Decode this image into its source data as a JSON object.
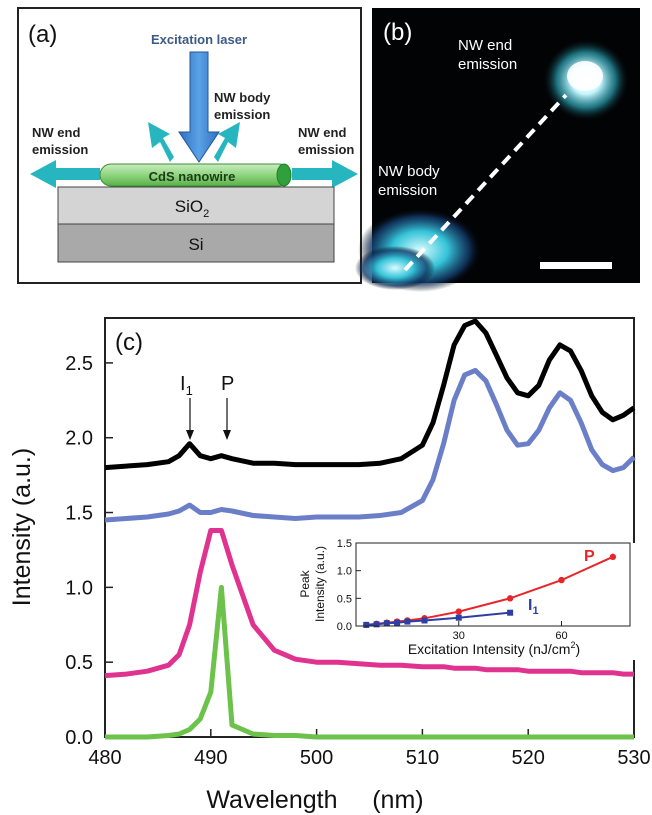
{
  "panel_a": {
    "label": "(a)",
    "laser": "Excitation laser",
    "body_emission": [
      "NW body",
      "emission"
    ],
    "end_emission_left": [
      "NW end",
      "emission"
    ],
    "end_emission_right": [
      "NW end",
      "emission"
    ],
    "nanowire": "CdS nanowire",
    "sio2": "SiO",
    "sio2_sub": "2",
    "si": "Si"
  },
  "panel_b": {
    "label": "(b)",
    "end_emission": [
      "NW end",
      "emission"
    ],
    "body_emission": [
      "NW body",
      "emission"
    ]
  },
  "panel_c": {
    "label": "(c)",
    "annot_i1": "I",
    "annot_i1_sub": "1",
    "annot_p": "P"
  },
  "chart_data": [
    {
      "type": "line",
      "xlabel": "Wavelength     (nm)",
      "ylabel": "Intensity (a.u.)",
      "xlim": [
        480,
        530
      ],
      "ylim": [
        0,
        2.8
      ],
      "xticks": [
        480,
        490,
        500,
        510,
        520,
        530
      ],
      "yticks": [
        0.0,
        0.5,
        1.0,
        1.5,
        2.0,
        2.5
      ],
      "x": [
        480,
        482,
        484,
        486,
        487,
        488,
        489,
        490,
        491,
        492,
        494,
        496,
        498,
        500,
        502,
        504,
        506,
        508,
        510,
        511,
        512,
        513,
        514,
        515,
        516,
        517,
        518,
        519,
        520,
        521,
        522,
        523,
        524,
        525,
        526,
        527,
        528,
        529,
        530
      ],
      "series": [
        {
          "color": "#000000",
          "values": [
            1.8,
            1.81,
            1.82,
            1.84,
            1.88,
            1.96,
            1.88,
            1.86,
            1.88,
            1.86,
            1.83,
            1.83,
            1.82,
            1.82,
            1.82,
            1.82,
            1.83,
            1.86,
            1.95,
            2.1,
            2.35,
            2.62,
            2.75,
            2.78,
            2.7,
            2.55,
            2.4,
            2.3,
            2.28,
            2.35,
            2.52,
            2.62,
            2.58,
            2.45,
            2.28,
            2.17,
            2.12,
            2.15,
            2.2
          ]
        },
        {
          "color": "#6b7fc9",
          "values": [
            1.45,
            1.46,
            1.47,
            1.49,
            1.51,
            1.55,
            1.5,
            1.5,
            1.52,
            1.51,
            1.48,
            1.47,
            1.46,
            1.47,
            1.47,
            1.47,
            1.48,
            1.5,
            1.58,
            1.72,
            1.96,
            2.25,
            2.42,
            2.45,
            2.38,
            2.22,
            2.05,
            1.95,
            1.96,
            2.05,
            2.2,
            2.3,
            2.25,
            2.1,
            1.92,
            1.82,
            1.78,
            1.8,
            1.87
          ]
        },
        {
          "color": "#e0338f",
          "values": [
            0.41,
            0.42,
            0.44,
            0.48,
            0.55,
            0.75,
            1.1,
            1.38,
            1.38,
            1.15,
            0.75,
            0.58,
            0.52,
            0.5,
            0.5,
            0.49,
            0.48,
            0.48,
            0.47,
            0.47,
            0.47,
            0.46,
            0.46,
            0.46,
            0.45,
            0.45,
            0.45,
            0.45,
            0.44,
            0.44,
            0.44,
            0.44,
            0.44,
            0.43,
            0.43,
            0.43,
            0.43,
            0.42,
            0.42
          ]
        },
        {
          "color": "#6cc24a",
          "values": [
            0,
            0,
            0,
            0.01,
            0.02,
            0.05,
            0.12,
            0.3,
            1.0,
            0.08,
            0.02,
            0.01,
            0.01,
            0,
            0,
            0,
            0,
            0,
            0,
            0,
            0,
            0,
            0,
            0,
            0,
            0,
            0,
            0,
            0,
            0,
            0,
            0,
            0,
            0,
            0,
            0,
            0,
            0,
            0
          ]
        }
      ]
    },
    {
      "type": "line",
      "xlabel": "Excitation Intensity (nJ/cm",
      "xlabel_sup": "2",
      "xlabel_end": ")",
      "ylabel": "Peak Intensity (a.u.)",
      "ylabel_line1": "Peak",
      "ylabel_line2": "Intensity (a.u.)",
      "xlim": [
        0,
        80
      ],
      "ylim": [
        0,
        1.5
      ],
      "xticks": [
        30,
        60
      ],
      "yticks": [
        0.0,
        0.5,
        1.0,
        1.5
      ],
      "series": [
        {
          "name": "P",
          "color": "#e8262a",
          "x": [
            3,
            6,
            9,
            12,
            15,
            20,
            30,
            45,
            60,
            75
          ],
          "values": [
            0.02,
            0.04,
            0.06,
            0.08,
            0.1,
            0.14,
            0.26,
            0.5,
            0.83,
            1.25
          ]
        },
        {
          "name": "I",
          "name_sub": "1",
          "color": "#2e3fa3",
          "x": [
            3,
            6,
            9,
            12,
            15,
            20,
            30,
            45
          ],
          "values": [
            0.02,
            0.03,
            0.05,
            0.06,
            0.08,
            0.1,
            0.15,
            0.24
          ]
        }
      ]
    }
  ]
}
